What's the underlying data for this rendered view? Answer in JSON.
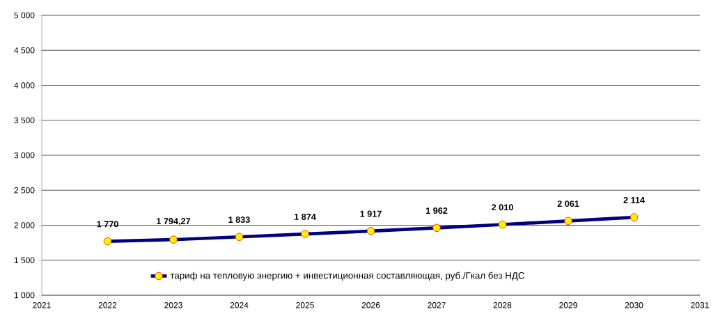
{
  "chart_data": {
    "type": "line",
    "x": [
      2022,
      2023,
      2024,
      2025,
      2026,
      2027,
      2028,
      2029,
      2030
    ],
    "series": [
      {
        "name": "тариф на тепловую энергию + инвестиционная составляющая, руб./Гкал без НДС",
        "color": "#000080",
        "values": [
          1770,
          1794.27,
          1833,
          1874,
          1917,
          1962,
          2010,
          2061,
          2114
        ],
        "value_labels": [
          "1 770",
          "1 794,27",
          "1 833",
          "1 874",
          "1 917",
          "1 962",
          "2 010",
          "2 061",
          "2 114"
        ]
      }
    ],
    "xlim": [
      2021,
      2031
    ],
    "xticks": [
      2021,
      2022,
      2023,
      2024,
      2025,
      2026,
      2027,
      2028,
      2029,
      2030,
      2031
    ],
    "ylim": [
      1000,
      5000
    ],
    "yticks": [
      {
        "value": 1000,
        "label": "1 000"
      },
      {
        "value": 1500,
        "label": "1 500"
      },
      {
        "value": 2000,
        "label": "2 000"
      },
      {
        "value": 2500,
        "label": "2 500"
      },
      {
        "value": 3000,
        "label": "3 000"
      },
      {
        "value": 3500,
        "label": "3 500"
      },
      {
        "value": 4000,
        "label": "4 000"
      },
      {
        "value": 4500,
        "label": "4 500"
      },
      {
        "value": 5000,
        "label": "5 000"
      }
    ],
    "grid": "y",
    "legend": "bottom",
    "marker": "circle",
    "line_style": "solid"
  }
}
